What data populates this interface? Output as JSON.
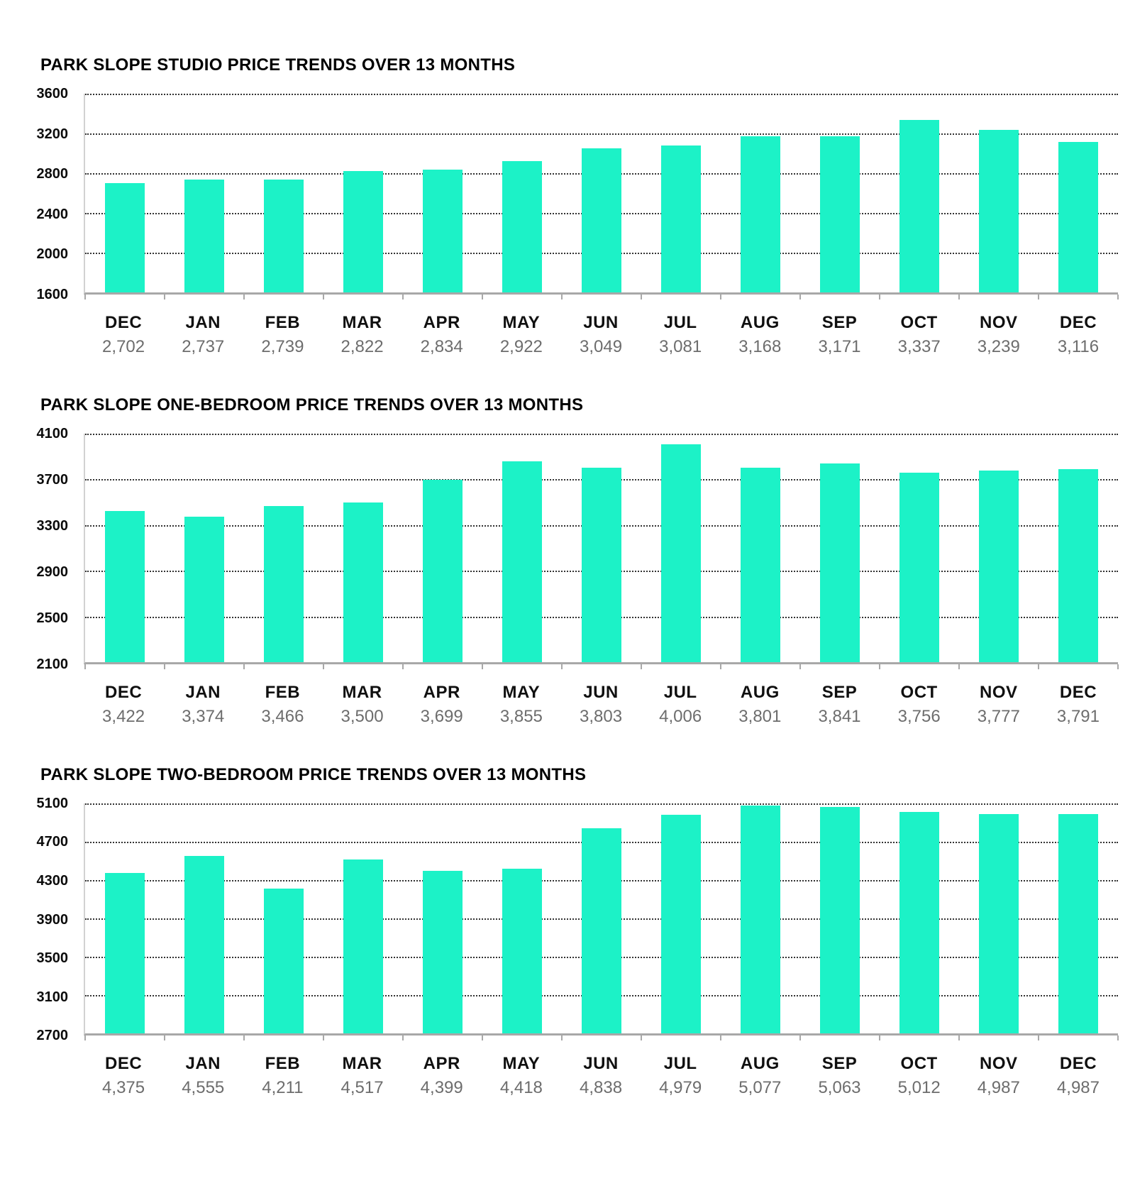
{
  "palette": {
    "bar_color": "#1CF2C7",
    "grid_color": "#333333",
    "axis_color": "#a8a8a8",
    "value_label_color": "#6d6d6d",
    "title_color": "#000000"
  },
  "chart_data": [
    {
      "type": "bar",
      "title": "PARK SLOPE STUDIO PRICE TRENDS OVER 13 MONTHS",
      "categories": [
        "DEC",
        "JAN",
        "FEB",
        "MAR",
        "APR",
        "MAY",
        "JUN",
        "JUL",
        "AUG",
        "SEP",
        "OCT",
        "NOV",
        "DEC"
      ],
      "values": [
        2702,
        2737,
        2739,
        2822,
        2834,
        2922,
        3049,
        3081,
        3168,
        3171,
        3337,
        3239,
        3116
      ],
      "value_labels": [
        "2,702",
        "2,737",
        "2,739",
        "2,822",
        "2,834",
        "2,922",
        "3,049",
        "3,081",
        "3,168",
        "3,171",
        "3,337",
        "3,239",
        "3,116"
      ],
      "ylim": [
        1600,
        3600
      ],
      "ytick_labels": [
        "3600",
        "3200",
        "2800",
        "2400",
        "2000",
        "1600"
      ],
      "xlabel": "",
      "ylabel": "",
      "grid": "dotted-horizontal",
      "legend": "none",
      "bar_color": "#1CF2C7"
    },
    {
      "type": "bar",
      "title": "PARK SLOPE ONE-BEDROOM PRICE TRENDS OVER 13 MONTHS",
      "categories": [
        "DEC",
        "JAN",
        "FEB",
        "MAR",
        "APR",
        "MAY",
        "JUN",
        "JUL",
        "AUG",
        "SEP",
        "OCT",
        "NOV",
        "DEC"
      ],
      "values": [
        3422,
        3374,
        3466,
        3500,
        3699,
        3855,
        3803,
        4006,
        3801,
        3841,
        3756,
        3777,
        3791
      ],
      "value_labels": [
        "3,422",
        "3,374",
        "3,466",
        "3,500",
        "3,699",
        "3,855",
        "3,803",
        "4,006",
        "3,801",
        "3,841",
        "3,756",
        "3,777",
        "3,791"
      ],
      "ylim": [
        2100,
        4100
      ],
      "ytick_labels": [
        "4100",
        "3700",
        "3300",
        "2900",
        "2500",
        "2100"
      ],
      "xlabel": "",
      "ylabel": "",
      "grid": "dotted-horizontal",
      "legend": "none",
      "bar_color": "#1CF2C7"
    },
    {
      "type": "bar",
      "title": "PARK SLOPE TWO-BEDROOM PRICE TRENDS OVER 13 MONTHS",
      "categories": [
        "DEC",
        "JAN",
        "FEB",
        "MAR",
        "APR",
        "MAY",
        "JUN",
        "JUL",
        "AUG",
        "SEP",
        "OCT",
        "NOV",
        "DEC"
      ],
      "values": [
        4375,
        4555,
        4211,
        4517,
        4399,
        4418,
        4838,
        4979,
        5077,
        5063,
        5012,
        4987,
        4987
      ],
      "value_labels": [
        "4,375",
        "4,555",
        "4,211",
        "4,517",
        "4,399",
        "4,418",
        "4,838",
        "4,979",
        "5,077",
        "5,063",
        "5,012",
        "4,987",
        "4,987"
      ],
      "ylim": [
        2700,
        5100
      ],
      "ytick_labels": [
        "5100",
        "4700",
        "4300",
        "3900",
        "3500",
        "3100",
        "2700"
      ],
      "xlabel": "",
      "ylabel": "",
      "grid": "dotted-horizontal",
      "legend": "none",
      "bar_color": "#1CF2C7"
    }
  ]
}
